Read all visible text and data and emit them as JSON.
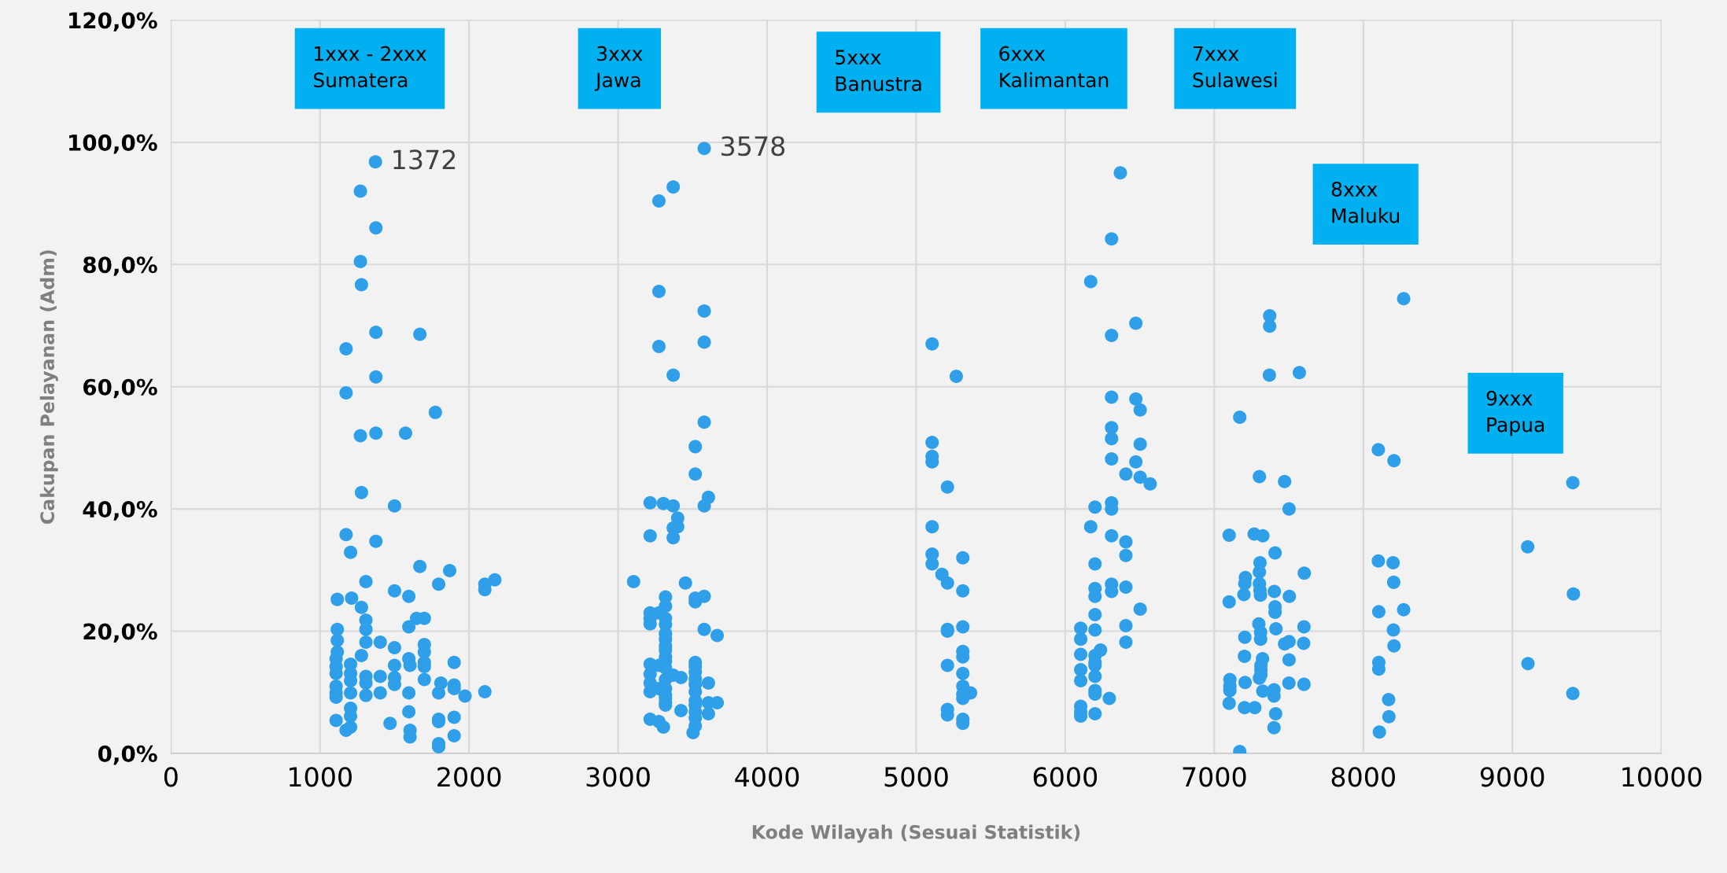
{
  "chart_data": {
    "type": "scatter",
    "xlabel": "Kode Wilayah (Sesuai Statistik)",
    "ylabel": "Cakupan Pelayanan (Adm)",
    "xlim": [
      0,
      10000
    ],
    "xticks": [
      0,
      1000,
      2000,
      3000,
      4000,
      5000,
      6000,
      7000,
      8000,
      9000,
      10000
    ],
    "ylim": [
      0,
      120
    ],
    "yticks": [
      {
        "value": 0,
        "label": "0,0%"
      },
      {
        "value": 20,
        "label": "20,0%"
      },
      {
        "value": 40,
        "label": "40,0%"
      },
      {
        "value": 60,
        "label": "60,0%"
      },
      {
        "value": 80,
        "label": "80,0%"
      },
      {
        "value": 100,
        "label": "100,0%"
      },
      {
        "value": 120,
        "label": "120,0%"
      }
    ],
    "grid": true,
    "legend": false,
    "marker": "circle",
    "annotations": [
      {
        "text": "1372",
        "x": 1372,
        "y": 96.8
      },
      {
        "text": "3578",
        "x": 3578,
        "y": 99.0
      },
      "1xxx - 2xxx\nSumatera",
      "3xxx\nJawa",
      "5xxx\nBanustra",
      "6xxx\nKalimantan",
      "7xxx\nSulawesi",
      "8xxx\nMaluku",
      "9xxx\nPapua"
    ],
    "series": [
      {
        "color": "#2e9fe8",
        "x": [
          1372,
          1271,
          1375,
          1271,
          1278,
          1375,
          1670,
          1175,
          1375,
          1175,
          1774,
          1271,
          1375,
          1574,
          1278,
          1500,
          1175,
          1375,
          1205,
          1670,
          1870,
          1308,
          2173,
          2106,
          2106,
          1796,
          1500,
          1116,
          1212,
          1596,
          1278,
          1648,
          1700,
          1308,
          1596,
          1116,
          1308,
          1116,
          1308,
          1404,
          1500,
          1700,
          1116,
          1700,
          1108,
          1278,
          1596,
          1700,
          1900,
          1108,
          1205,
          1500,
          1604,
          1700,
          1108,
          1205,
          1308,
          1404,
          1500,
          1205,
          1700,
          1308,
          1500,
          1811,
          1900,
          1108,
          1900,
          2106,
          1108,
          1205,
          1404,
          1308,
          1596,
          1796,
          1973,
          1108,
          1205,
          1596,
          1205,
          1900,
          1108,
          1796,
          1470,
          1205,
          1175,
          1604,
          1796,
          1900,
          1604,
          1796,
          1796,
          3578,
          3370,
          3274,
          3274,
          3578,
          3274,
          3578,
          3370,
          3578,
          3518,
          3518,
          3606,
          3215,
          3304,
          3370,
          3578,
          3400,
          3400,
          3370,
          3215,
          3370,
          3104,
          3452,
          3318,
          3578,
          3518,
          3518,
          3318,
          3215,
          3274,
          3215,
          3318,
          3215,
          3318,
          3578,
          3318,
          3665,
          3318,
          3318,
          3318,
          3318,
          3318,
          3518,
          3215,
          3274,
          3518,
          3318,
          3518,
          3215,
          3370,
          3422,
          3518,
          3318,
          3215,
          3606,
          3518,
          3274,
          3318,
          3215,
          3518,
          3318,
          3318,
          3518,
          3318,
          3606,
          3665,
          3518,
          3318,
          3518,
          3606,
          3422,
          3215,
          3518,
          3274,
          3518,
          3304,
          3503,
          5107,
          5269,
          5107,
          5107,
          5107,
          5210,
          5107,
          5107,
          5313,
          5107,
          5173,
          5210,
          5313,
          5210,
          5210,
          5313,
          5210,
          5313,
          5313,
          5313,
          5313,
          5313,
          5365,
          5313,
          5210,
          5210,
          5313,
          5313,
          6370,
          6311,
          6171,
          6474,
          6311,
          6474,
          6503,
          6311,
          6311,
          6311,
          6503,
          6311,
          6474,
          6407,
          6503,
          6570,
          6311,
          6311,
          6200,
          6171,
          6311,
          6407,
          6407,
          6200,
          6311,
          6407,
          6200,
          6311,
          6200,
          6503,
          6200,
          6407,
          6104,
          6200,
          6104,
          6407,
          6237,
          6200,
          6104,
          6200,
          6200,
          6104,
          6200,
          6104,
          6200,
          6200,
          6296,
          6104,
          6104,
          6104,
          6200,
          7372,
          7372,
          7370,
          7571,
          7171,
          7303,
          7472,
          7502,
          7100,
          7268,
          7326,
          7408,
          7307,
          7303,
          7604,
          7209,
          7205,
          7303,
          7307,
          7403,
          7199,
          7310,
          7504,
          7100,
          7408,
          7408,
          7299,
          7414,
          7602,
          7311,
          7205,
          7311,
          7472,
          7502,
          7600,
          7203,
          7324,
          7502,
          7313,
          7313,
          7313,
          7303,
          7105,
          7207,
          7501,
          7602,
          7105,
          7105,
          7401,
          7326,
          7401,
          7100,
          7203,
          7272,
          7412,
          7401,
          7171,
          8271,
          8101,
          8206,
          8101,
          8200,
          8204,
          8104,
          8271,
          8202,
          8206,
          8104,
          8104,
          8170,
          8172,
          8108,
          9406,
          9103,
          9410,
          9105,
          9406
        ],
        "values": [
          96.8,
          92.0,
          86.0,
          80.5,
          76.7,
          68.9,
          68.6,
          66.2,
          61.6,
          59.0,
          55.8,
          52.0,
          52.4,
          52.4,
          42.7,
          40.5,
          35.8,
          34.7,
          32.9,
          30.6,
          29.9,
          28.1,
          28.4,
          27.7,
          26.8,
          27.7,
          26.6,
          25.2,
          25.4,
          25.7,
          23.9,
          22.1,
          22.1,
          21.8,
          20.7,
          20.3,
          20.3,
          18.5,
          18.2,
          18.2,
          17.3,
          17.8,
          16.6,
          16.6,
          15.5,
          16.0,
          15.5,
          14.9,
          14.9,
          14.2,
          14.6,
          14.4,
          14.4,
          14.2,
          13.1,
          13.1,
          12.6,
          12.6,
          12.4,
          11.9,
          12.1,
          11.5,
          11.3,
          11.5,
          11.2,
          11.0,
          10.6,
          10.1,
          9.9,
          9.9,
          9.9,
          9.5,
          9.9,
          9.9,
          9.4,
          9.2,
          7.4,
          6.8,
          6.1,
          5.9,
          5.4,
          5.6,
          4.9,
          4.3,
          3.8,
          3.8,
          5.2,
          2.9,
          2.7,
          1.6,
          1.1,
          99.0,
          92.7,
          90.4,
          75.6,
          72.4,
          66.6,
          67.3,
          61.9,
          54.2,
          50.2,
          45.7,
          41.9,
          41.0,
          40.9,
          40.5,
          40.5,
          38.5,
          37.1,
          36.9,
          35.6,
          35.3,
          28.1,
          27.9,
          25.6,
          25.7,
          25.4,
          24.8,
          24.1,
          23.0,
          23.0,
          22.1,
          22.1,
          21.2,
          21.1,
          20.3,
          19.6,
          19.3,
          18.7,
          17.6,
          16.9,
          15.8,
          15.1,
          14.9,
          14.6,
          14.4,
          14.2,
          14.0,
          13.3,
          13.0,
          12.8,
          12.4,
          12.2,
          12.1,
          11.5,
          11.5,
          11.3,
          10.6,
          10.6,
          10.1,
          10.1,
          9.5,
          9.0,
          8.6,
          8.3,
          8.3,
          8.3,
          7.9,
          7.9,
          6.8,
          6.5,
          7.0,
          5.6,
          5.8,
          5.2,
          4.5,
          4.3,
          3.4,
          67.0,
          61.7,
          50.9,
          48.6,
          47.7,
          43.6,
          37.1,
          32.6,
          32.0,
          31.0,
          29.3,
          27.9,
          26.6,
          20.3,
          20.0,
          20.7,
          14.4,
          16.7,
          15.8,
          13.1,
          11.0,
          9.7,
          9.9,
          9.0,
          7.2,
          6.3,
          5.6,
          4.9,
          95.0,
          84.2,
          77.2,
          70.4,
          68.4,
          58.0,
          56.2,
          58.3,
          53.3,
          51.5,
          50.6,
          48.2,
          47.7,
          45.7,
          45.2,
          44.1,
          41.0,
          40.0,
          40.3,
          37.1,
          35.6,
          34.6,
          32.4,
          31.0,
          27.7,
          27.2,
          27.0,
          26.5,
          25.7,
          23.6,
          22.7,
          20.9,
          20.5,
          20.2,
          18.7,
          18.2,
          16.9,
          16.0,
          16.2,
          14.9,
          14.4,
          13.7,
          12.6,
          11.9,
          10.3,
          9.7,
          9.0,
          7.7,
          6.8,
          6.1,
          6.5,
          71.6,
          69.9,
          61.9,
          62.3,
          55.0,
          45.3,
          44.5,
          40.0,
          35.7,
          35.9,
          35.6,
          32.8,
          31.2,
          29.7,
          29.5,
          28.8,
          27.8,
          27.8,
          26.7,
          26.5,
          26.0,
          25.9,
          25.7,
          24.8,
          24.0,
          23.1,
          21.2,
          20.4,
          20.7,
          19.8,
          19.0,
          18.7,
          17.9,
          18.3,
          18.0,
          15.9,
          15.5,
          15.3,
          14.4,
          13.7,
          12.9,
          12.3,
          12.1,
          11.6,
          11.5,
          11.3,
          11.0,
          10.3,
          10.4,
          10.2,
          9.4,
          8.2,
          7.5,
          7.5,
          6.5,
          4.2,
          0.3,
          74.4,
          49.7,
          47.9,
          31.5,
          31.2,
          28.0,
          23.2,
          23.5,
          20.2,
          17.6,
          14.9,
          13.8,
          8.8,
          6.0,
          3.5,
          44.3,
          33.8,
          26.1,
          14.7,
          9.8
        ]
      }
    ]
  }
}
